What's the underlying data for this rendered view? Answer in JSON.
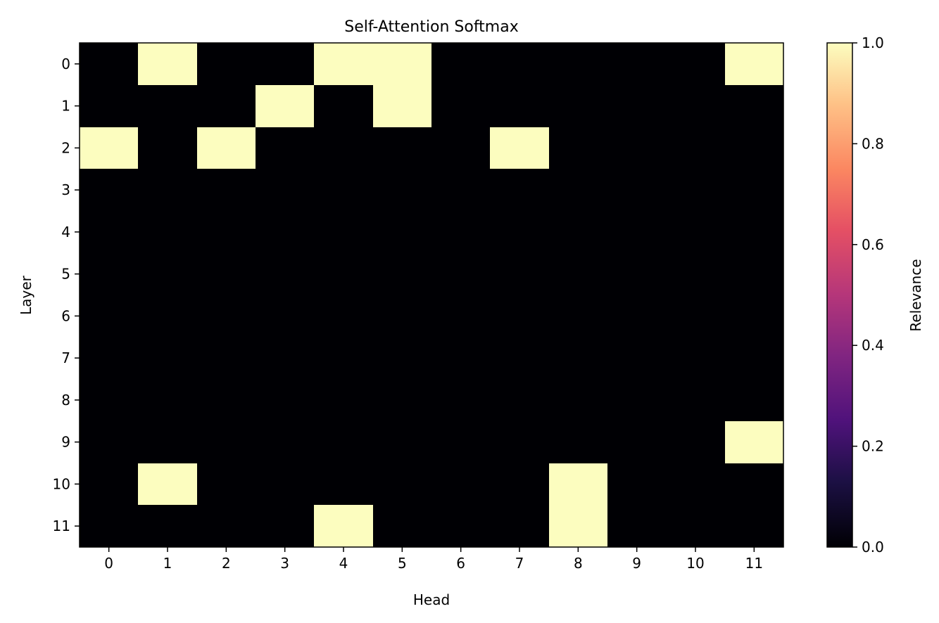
{
  "chart_data": {
    "type": "heatmap",
    "title": "Self-Attention Softmax",
    "xlabel": "Head",
    "ylabel": "Layer",
    "x_ticks": [
      "0",
      "1",
      "2",
      "3",
      "4",
      "5",
      "6",
      "7",
      "8",
      "9",
      "10",
      "11"
    ],
    "y_ticks": [
      "0",
      "1",
      "2",
      "3",
      "4",
      "5",
      "6",
      "7",
      "8",
      "9",
      "10",
      "11"
    ],
    "values": [
      [
        0,
        1,
        0,
        0,
        1,
        1,
        0,
        0,
        0,
        0,
        0,
        1
      ],
      [
        0,
        0,
        0,
        1,
        0,
        1,
        0,
        0,
        0,
        0,
        0,
        0
      ],
      [
        1,
        0,
        1,
        0,
        0,
        0,
        0,
        1,
        0,
        0,
        0,
        0
      ],
      [
        0,
        0,
        0,
        0,
        0,
        0,
        0,
        0,
        0,
        0,
        0,
        0
      ],
      [
        0,
        0,
        0,
        0,
        0,
        0,
        0,
        0,
        0,
        0,
        0,
        0
      ],
      [
        0,
        0,
        0,
        0,
        0,
        0,
        0,
        0,
        0,
        0,
        0,
        0
      ],
      [
        0,
        0,
        0,
        0,
        0,
        0,
        0,
        0,
        0,
        0,
        0,
        0
      ],
      [
        0,
        0,
        0,
        0,
        0,
        0,
        0,
        0,
        0,
        0,
        0,
        0
      ],
      [
        0,
        0,
        0,
        0,
        0,
        0,
        0,
        0,
        0,
        0,
        0,
        0
      ],
      [
        0,
        0,
        0,
        0,
        0,
        0,
        0,
        0,
        0,
        0,
        0,
        1
      ],
      [
        0,
        1,
        0,
        0,
        0,
        0,
        0,
        0,
        1,
        0,
        0,
        0
      ],
      [
        0,
        0,
        0,
        0,
        1,
        0,
        0,
        0,
        1,
        0,
        0,
        0
      ]
    ],
    "colorbar": {
      "label": "Relevance",
      "range": [
        0,
        1
      ],
      "ticks": [
        "0.0",
        "0.2",
        "0.4",
        "0.6",
        "0.8",
        "1.0"
      ],
      "colormap": "magma"
    },
    "grid": false,
    "legend": "none"
  }
}
